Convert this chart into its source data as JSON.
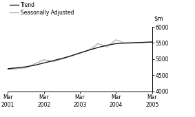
{
  "ylim": [
    4000,
    6000
  ],
  "yticks": [
    4000,
    4500,
    5000,
    5500,
    6000
  ],
  "xlim": [
    0,
    16
  ],
  "xtick_positions": [
    0,
    4,
    8,
    12,
    16
  ],
  "xtick_labels": [
    "Mar\n2001",
    "Mar\n2002",
    "Mar\n2003",
    "Mar\n2004",
    "Mar\n2005"
  ],
  "trend_color": "#1a1a1a",
  "sa_color": "#b0b0b0",
  "trend_x": [
    0,
    1,
    2,
    3,
    4,
    5,
    6,
    7,
    8,
    9,
    10,
    11,
    12,
    13,
    14,
    15,
    16
  ],
  "trend_y": [
    4700,
    4730,
    4760,
    4810,
    4880,
    4950,
    5020,
    5100,
    5190,
    5280,
    5360,
    5430,
    5480,
    5500,
    5510,
    5520,
    5530
  ],
  "sa_x": [
    0,
    1,
    2,
    3,
    4,
    5,
    6,
    7,
    8,
    9,
    10,
    11,
    12,
    13,
    14,
    15,
    16
  ],
  "sa_y": [
    4680,
    4700,
    4730,
    4850,
    4980,
    4920,
    5000,
    5090,
    5190,
    5280,
    5480,
    5380,
    5600,
    5490,
    5500,
    5510,
    5540
  ],
  "legend_trend": "Trend",
  "legend_sa": "Seasonally Adjusted",
  "trend_lw": 1.0,
  "sa_lw": 1.0,
  "background_color": "#ffffff"
}
